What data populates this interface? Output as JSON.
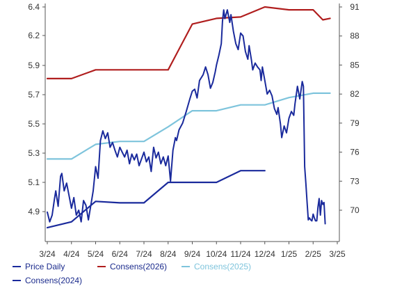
{
  "chart_data": {
    "type": "line",
    "x_ticks": [
      "3/24",
      "4/24",
      "5/24",
      "6/24",
      "7/24",
      "8/24",
      "9/24",
      "10/24",
      "11/24",
      "12/24",
      "1/25",
      "2/25",
      "3/25"
    ],
    "left_axis": {
      "ticks": [
        4.9,
        5.1,
        5.3,
        5.5,
        5.7,
        5.9,
        6.2,
        6.4
      ],
      "tick_labels": [
        "4.9",
        "5.1",
        "5.3",
        "5.5",
        "5.7",
        "5.9",
        "6.2",
        "6.4"
      ]
    },
    "right_axis": {
      "ticks": [
        70,
        73,
        76,
        79,
        82,
        85,
        88,
        91
      ],
      "tick_labels": [
        "70",
        "73",
        "76",
        "79",
        "82",
        "85",
        "88",
        "91"
      ]
    },
    "legend_position": "bottom",
    "grid": false,
    "series": [
      {
        "name": "Price Daily",
        "axis": "right",
        "color": "#1a2a9c",
        "points": [
          [
            3.0,
            69.8
          ],
          [
            3.1,
            68.8
          ],
          [
            3.2,
            69.5
          ],
          [
            3.3,
            71.2
          ],
          [
            3.35,
            72.0
          ],
          [
            3.45,
            70.4
          ],
          [
            3.55,
            73.5
          ],
          [
            3.6,
            73.8
          ],
          [
            3.7,
            72.0
          ],
          [
            3.8,
            72.8
          ],
          [
            3.9,
            71.5
          ],
          [
            4.0,
            70.2
          ],
          [
            4.1,
            71.3
          ],
          [
            4.2,
            69.5
          ],
          [
            4.3,
            70.0
          ],
          [
            4.4,
            68.8
          ],
          [
            4.5,
            71.0
          ],
          [
            4.6,
            70.5
          ],
          [
            4.7,
            69.0
          ],
          [
            4.8,
            70.5
          ],
          [
            4.9,
            72.0
          ],
          [
            5.0,
            74.5
          ],
          [
            5.1,
            73.3
          ],
          [
            5.2,
            77.2
          ],
          [
            5.3,
            78.2
          ],
          [
            5.4,
            77.4
          ],
          [
            5.5,
            78.0
          ],
          [
            5.6,
            76.5
          ],
          [
            5.7,
            77.0
          ],
          [
            5.8,
            76.2
          ],
          [
            5.9,
            75.5
          ],
          [
            6.0,
            76.5
          ],
          [
            6.1,
            76.0
          ],
          [
            6.2,
            75.5
          ],
          [
            6.3,
            76.2
          ],
          [
            6.4,
            74.8
          ],
          [
            6.5,
            75.8
          ],
          [
            6.6,
            75.2
          ],
          [
            6.7,
            75.8
          ],
          [
            6.8,
            74.6
          ],
          [
            6.9,
            75.3
          ],
          [
            7.0,
            76.0
          ],
          [
            7.1,
            75.0
          ],
          [
            7.2,
            75.5
          ],
          [
            7.3,
            74.0
          ],
          [
            7.4,
            76.5
          ],
          [
            7.5,
            75.4
          ],
          [
            7.6,
            76.0
          ],
          [
            7.7,
            74.8
          ],
          [
            7.8,
            75.5
          ],
          [
            7.9,
            74.6
          ],
          [
            8.0,
            75.6
          ],
          [
            8.1,
            73.0
          ],
          [
            8.2,
            76.2
          ],
          [
            8.3,
            77.5
          ],
          [
            8.35,
            77.2
          ],
          [
            8.45,
            78.3
          ],
          [
            8.6,
            79.0
          ],
          [
            8.75,
            80.2
          ],
          [
            8.9,
            81.5
          ],
          [
            9.0,
            82.3
          ],
          [
            9.1,
            82.5
          ],
          [
            9.2,
            81.6
          ],
          [
            9.3,
            83.4
          ],
          [
            9.45,
            84.0
          ],
          [
            9.55,
            84.8
          ],
          [
            9.65,
            84.0
          ],
          [
            9.75,
            82.6
          ],
          [
            9.85,
            83.2
          ],
          [
            9.95,
            84.3
          ],
          [
            10.0,
            85.0
          ],
          [
            10.1,
            86.0
          ],
          [
            10.2,
            87.2
          ],
          [
            10.25,
            89.5
          ],
          [
            10.3,
            90.7
          ],
          [
            10.35,
            89.8
          ],
          [
            10.45,
            90.7
          ],
          [
            10.55,
            89.4
          ],
          [
            10.6,
            90.2
          ],
          [
            10.7,
            88.5
          ],
          [
            10.8,
            87.2
          ],
          [
            10.9,
            86.6
          ],
          [
            11.0,
            88.3
          ],
          [
            11.1,
            88.0
          ],
          [
            11.2,
            86.4
          ],
          [
            11.3,
            85.6
          ],
          [
            11.35,
            87.0
          ],
          [
            11.45,
            85.5
          ],
          [
            11.5,
            84.5
          ],
          [
            11.6,
            85.2
          ],
          [
            11.7,
            84.8
          ],
          [
            11.8,
            84.5
          ],
          [
            11.85,
            83.4
          ],
          [
            11.9,
            84.8
          ],
          [
            12.0,
            83.4
          ],
          [
            12.1,
            82.0
          ],
          [
            12.2,
            82.4
          ],
          [
            12.3,
            81.8
          ],
          [
            12.4,
            80.5
          ],
          [
            12.5,
            79.9
          ],
          [
            12.55,
            80.6
          ],
          [
            12.65,
            78.9
          ],
          [
            12.7,
            77.5
          ],
          [
            12.8,
            78.7
          ],
          [
            12.9,
            78.0
          ],
          [
            13.0,
            79.5
          ],
          [
            13.1,
            80.2
          ],
          [
            13.2,
            79.8
          ],
          [
            13.25,
            81.0
          ],
          [
            13.35,
            82.8
          ],
          [
            13.45,
            81.5
          ],
          [
            13.55,
            83.3
          ],
          [
            13.6,
            82.8
          ],
          [
            13.65,
            74.5
          ],
          [
            13.7,
            72.8
          ],
          [
            13.75,
            70.8
          ],
          [
            13.8,
            69.0
          ],
          [
            13.85,
            69.2
          ],
          [
            13.9,
            69.0
          ],
          [
            13.95,
            68.9
          ],
          [
            14.0,
            69.6
          ],
          [
            14.05,
            69.2
          ],
          [
            14.1,
            68.9
          ],
          [
            14.15,
            68.9
          ],
          [
            14.2,
            70.3
          ],
          [
            14.25,
            71.2
          ],
          [
            14.3,
            69.5
          ],
          [
            14.35,
            71.0
          ],
          [
            14.4,
            70.6
          ],
          [
            14.45,
            70.8
          ],
          [
            14.5,
            68.6
          ]
        ]
      },
      {
        "name": "Consens(2026)",
        "axis": "left",
        "color": "#b01e1e",
        "points": [
          [
            3.0,
            5.81
          ],
          [
            4.0,
            5.81
          ],
          [
            5.0,
            5.87
          ],
          [
            6.0,
            5.87
          ],
          [
            7.0,
            5.87
          ],
          [
            8.0,
            5.87
          ],
          [
            9.0,
            6.28
          ],
          [
            10.0,
            6.32
          ],
          [
            11.0,
            6.33
          ],
          [
            12.0,
            6.4
          ],
          [
            13.0,
            6.38
          ],
          [
            14.0,
            6.38
          ],
          [
            14.4,
            6.31
          ],
          [
            14.7,
            6.32
          ]
        ]
      },
      {
        "name": "Consens(2025)",
        "axis": "left",
        "color": "#7ec4dc",
        "points": [
          [
            3.0,
            5.26
          ],
          [
            4.0,
            5.26
          ],
          [
            5.0,
            5.36
          ],
          [
            6.0,
            5.38
          ],
          [
            7.0,
            5.38
          ],
          [
            8.0,
            5.48
          ],
          [
            9.0,
            5.59
          ],
          [
            10.0,
            5.59
          ],
          [
            11.0,
            5.63
          ],
          [
            12.0,
            5.63
          ],
          [
            13.0,
            5.68
          ],
          [
            14.0,
            5.71
          ],
          [
            14.7,
            5.71
          ]
        ]
      },
      {
        "name": "Consens(2024)",
        "axis": "left",
        "color": "#1a2a9c",
        "points": [
          [
            3.0,
            4.79
          ],
          [
            4.0,
            4.83
          ],
          [
            5.0,
            4.97
          ],
          [
            6.0,
            4.96
          ],
          [
            7.0,
            4.96
          ],
          [
            8.0,
            5.1
          ],
          [
            9.0,
            5.1
          ],
          [
            10.0,
            5.1
          ],
          [
            11.0,
            5.18
          ],
          [
            12.0,
            5.18
          ]
        ]
      }
    ]
  }
}
